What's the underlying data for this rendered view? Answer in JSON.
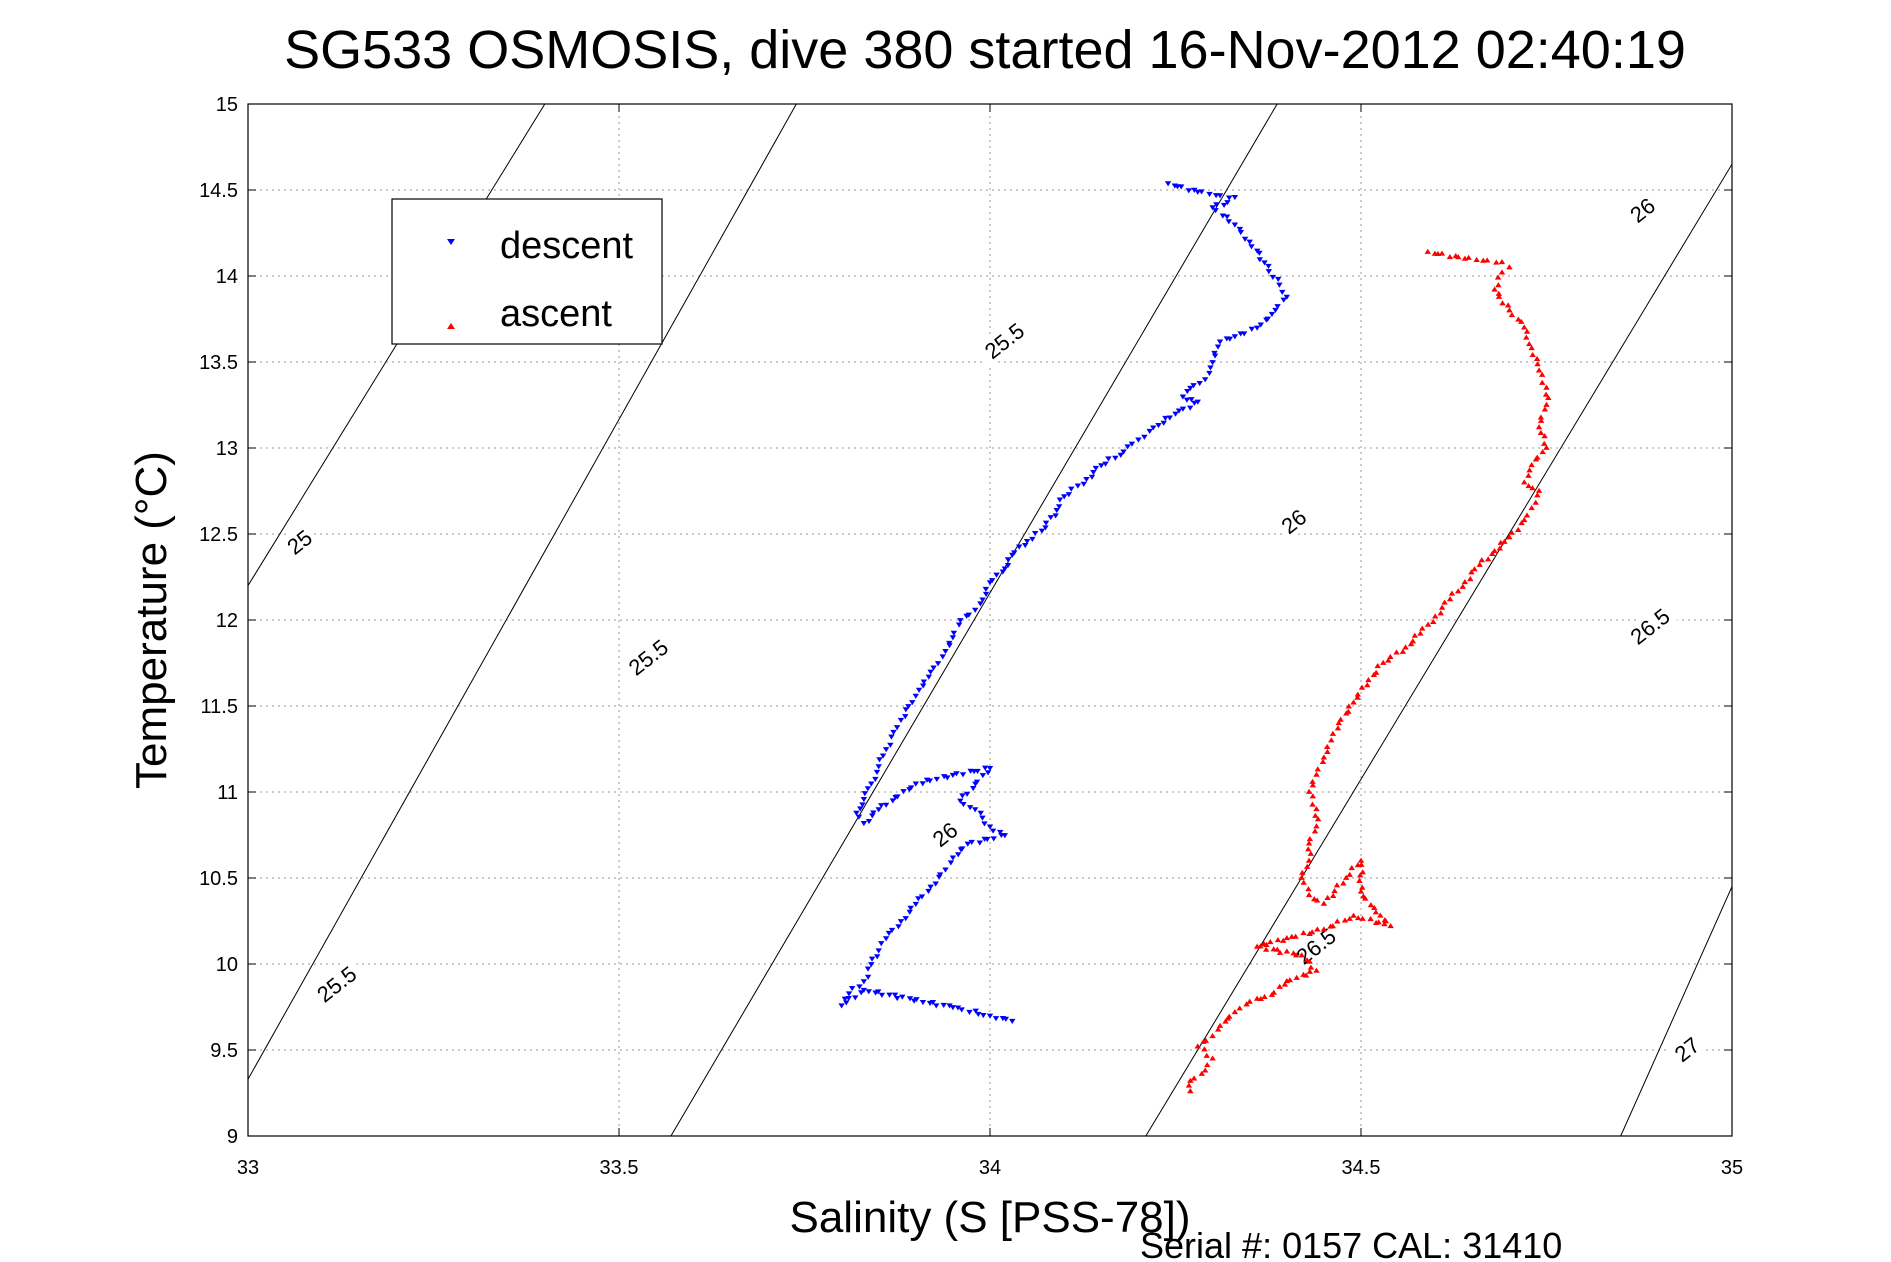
{
  "chart_data": {
    "type": "scatter",
    "title": "SG533 OSMOSIS, dive 380 started 16-Nov-2012 02:40:19",
    "xlabel": "Salinity (S [PSS-78])",
    "ylabel": "Temperature (°C)",
    "xlim": [
      33,
      35
    ],
    "ylim": [
      9,
      15
    ],
    "xticks": [
      33,
      33.5,
      34,
      34.5,
      35
    ],
    "xtick_labels": [
      "33",
      "33.5",
      "34",
      "34.5",
      "35"
    ],
    "yticks": [
      9,
      9.5,
      10,
      10.5,
      11,
      11.5,
      12,
      12.5,
      13,
      13.5,
      14,
      14.5,
      15
    ],
    "ytick_labels": [
      "9",
      "9.5",
      "10",
      "10.5",
      "11",
      "11.5",
      "12",
      "12.5",
      "13",
      "13.5",
      "14",
      "14.5",
      "15"
    ],
    "grid": true,
    "legend_position": "top-left",
    "footer": "Serial #: 0157  CAL: 31410",
    "isopycnals": [
      {
        "label": "25",
        "points": [
          [
            33,
            12.2
          ],
          [
            33.6,
            16.4
          ]
        ]
      },
      {
        "label": "25.5",
        "points": [
          [
            33,
            9.33
          ],
          [
            33.739,
            15
          ]
        ]
      },
      {
        "label": "26",
        "points": [
          [
            33.57,
            9
          ],
          [
            34.387,
            15
          ]
        ]
      },
      {
        "label": "26.5",
        "points": [
          [
            34.21,
            9
          ],
          [
            35,
            14.65
          ]
        ]
      },
      {
        "label": "27",
        "points": [
          [
            34.85,
            9
          ],
          [
            35,
            10.45
          ]
        ]
      }
    ],
    "contour_labels": [
      {
        "text": "25",
        "x": 33.07,
        "y": 12.45,
        "angle": -38
      },
      {
        "text": "25.5",
        "x": 33.54,
        "y": 11.78,
        "angle": -38
      },
      {
        "text": "25.5",
        "x": 34.02,
        "y": 13.62,
        "angle": -38
      },
      {
        "text": "25.5",
        "x": 33.12,
        "y": 9.88,
        "angle": -38
      },
      {
        "text": "26",
        "x": 34.41,
        "y": 12.57,
        "angle": -38
      },
      {
        "text": "26",
        "x": 34.88,
        "y": 14.38,
        "angle": -38
      },
      {
        "text": "26",
        "x": 33.94,
        "y": 10.75,
        "angle": -38
      },
      {
        "text": "26.5",
        "x": 34.44,
        "y": 10.1,
        "angle": -38
      },
      {
        "text": "26.5",
        "x": 34.89,
        "y": 11.96,
        "angle": -38
      },
      {
        "text": "27",
        "x": 34.94,
        "y": 9.5,
        "angle": -38
      }
    ],
    "series": [
      {
        "name": "descent",
        "color": "#0000ff",
        "marker": "triangle-down",
        "points": [
          [
            34.24,
            14.54
          ],
          [
            34.28,
            14.49
          ],
          [
            34.31,
            14.47
          ],
          [
            34.33,
            14.46
          ],
          [
            34.32,
            14.43
          ],
          [
            34.3,
            14.4
          ],
          [
            34.33,
            14.3
          ],
          [
            34.35,
            14.2
          ],
          [
            34.37,
            14.08
          ],
          [
            34.39,
            13.95
          ],
          [
            34.4,
            13.88
          ],
          [
            34.38,
            13.78
          ],
          [
            34.36,
            13.7
          ],
          [
            34.33,
            13.65
          ],
          [
            34.31,
            13.62
          ],
          [
            34.3,
            13.5
          ],
          [
            34.29,
            13.4
          ],
          [
            34.27,
            13.35
          ],
          [
            34.26,
            13.3
          ],
          [
            34.28,
            13.27
          ],
          [
            34.25,
            13.2
          ],
          [
            34.22,
            13.12
          ],
          [
            34.2,
            13.05
          ],
          [
            34.18,
            12.98
          ],
          [
            34.15,
            12.9
          ],
          [
            34.13,
            12.82
          ],
          [
            34.1,
            12.72
          ],
          [
            34.09,
            12.64
          ],
          [
            34.07,
            12.52
          ],
          [
            34.05,
            12.46
          ],
          [
            34.03,
            12.38
          ],
          [
            34.02,
            12.3
          ],
          [
            34.0,
            12.22
          ],
          [
            33.99,
            12.12
          ],
          [
            33.98,
            12.06
          ],
          [
            33.96,
            12.0
          ],
          [
            33.95,
            11.9
          ],
          [
            33.94,
            11.82
          ],
          [
            33.93,
            11.75
          ],
          [
            33.92,
            11.7
          ],
          [
            33.91,
            11.62
          ],
          [
            33.9,
            11.56
          ],
          [
            33.89,
            11.5
          ],
          [
            33.88,
            11.42
          ],
          [
            33.87,
            11.35
          ],
          [
            33.86,
            11.25
          ],
          [
            33.85,
            11.15
          ],
          [
            33.84,
            11.05
          ],
          [
            33.83,
            10.96
          ],
          [
            33.82,
            10.88
          ],
          [
            33.83,
            10.82
          ],
          [
            33.85,
            10.9
          ],
          [
            33.9,
            11.05
          ],
          [
            33.95,
            11.1
          ],
          [
            34.0,
            11.14
          ],
          [
            33.96,
            10.95
          ],
          [
            33.98,
            10.9
          ],
          [
            34.0,
            10.8
          ],
          [
            34.02,
            10.75
          ],
          [
            33.97,
            10.7
          ],
          [
            33.95,
            10.62
          ],
          [
            33.94,
            10.55
          ],
          [
            33.92,
            10.45
          ],
          [
            33.9,
            10.35
          ],
          [
            33.88,
            10.25
          ],
          [
            33.86,
            10.15
          ],
          [
            33.85,
            10.08
          ],
          [
            33.84,
            10.0
          ],
          [
            33.83,
            9.9
          ],
          [
            33.81,
            9.83
          ],
          [
            33.8,
            9.76
          ],
          [
            33.83,
            9.85
          ],
          [
            33.95,
            9.75
          ],
          [
            34.0,
            9.7
          ],
          [
            34.03,
            9.67
          ]
        ]
      },
      {
        "name": "ascent",
        "color": "#ff0000",
        "marker": "triangle-up",
        "points": [
          [
            34.59,
            14.14
          ],
          [
            34.64,
            14.1
          ],
          [
            34.67,
            14.09
          ],
          [
            34.69,
            14.08
          ],
          [
            34.7,
            14.05
          ],
          [
            34.69,
            14.02
          ],
          [
            34.68,
            13.92
          ],
          [
            34.7,
            13.8
          ],
          [
            34.72,
            13.7
          ],
          [
            34.73,
            13.58
          ],
          [
            34.74,
            13.45
          ],
          [
            34.75,
            13.35
          ],
          [
            34.75,
            13.25
          ],
          [
            34.74,
            13.12
          ],
          [
            34.75,
            13.0
          ],
          [
            34.73,
            12.9
          ],
          [
            34.72,
            12.8
          ],
          [
            34.74,
            12.75
          ],
          [
            34.73,
            12.65
          ],
          [
            34.72,
            12.58
          ],
          [
            34.7,
            12.48
          ],
          [
            34.68,
            12.4
          ],
          [
            34.66,
            12.32
          ],
          [
            34.64,
            12.22
          ],
          [
            34.62,
            12.12
          ],
          [
            34.6,
            12.02
          ],
          [
            34.58,
            11.92
          ],
          [
            34.56,
            11.84
          ],
          [
            34.53,
            11.75
          ],
          [
            34.51,
            11.65
          ],
          [
            34.49,
            11.52
          ],
          [
            34.47,
            11.4
          ],
          [
            34.46,
            11.3
          ],
          [
            34.45,
            11.2
          ],
          [
            34.44,
            11.1
          ],
          [
            34.43,
            11.0
          ],
          [
            34.44,
            10.9
          ],
          [
            34.44,
            10.8
          ],
          [
            34.43,
            10.7
          ],
          [
            34.43,
            10.6
          ],
          [
            34.42,
            10.5
          ],
          [
            34.43,
            10.4
          ],
          [
            34.45,
            10.35
          ],
          [
            34.48,
            10.5
          ],
          [
            34.5,
            10.6
          ],
          [
            34.5,
            10.42
          ],
          [
            34.52,
            10.3
          ],
          [
            34.54,
            10.22
          ],
          [
            34.49,
            10.28
          ],
          [
            34.45,
            10.2
          ],
          [
            34.4,
            10.15
          ],
          [
            34.36,
            10.1
          ],
          [
            34.42,
            10.05
          ],
          [
            34.44,
            9.96
          ],
          [
            34.4,
            9.9
          ],
          [
            34.38,
            9.82
          ],
          [
            34.35,
            9.78
          ],
          [
            34.33,
            9.72
          ],
          [
            34.31,
            9.64
          ],
          [
            34.3,
            9.58
          ],
          [
            34.28,
            9.52
          ],
          [
            34.3,
            9.45
          ],
          [
            34.29,
            9.38
          ],
          [
            34.27,
            9.32
          ],
          [
            34.27,
            9.26
          ]
        ]
      }
    ]
  }
}
